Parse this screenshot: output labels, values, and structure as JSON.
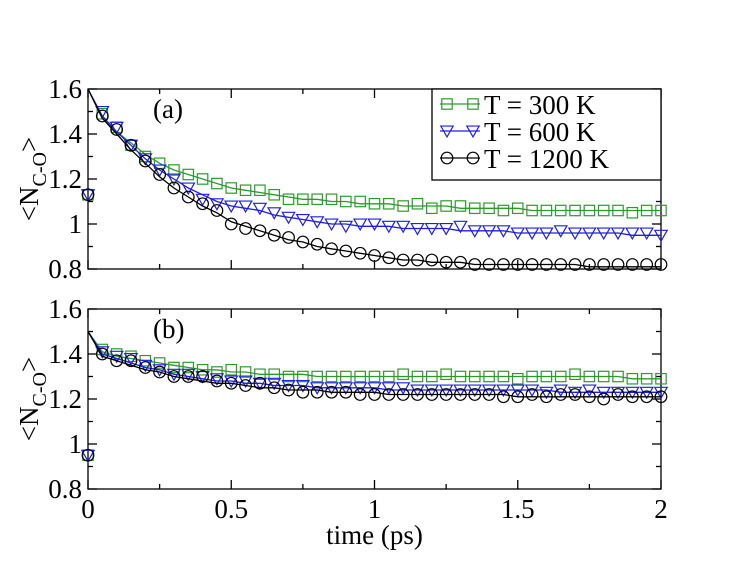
{
  "chart_data": [
    {
      "panel_label": "(a)",
      "type": "line",
      "ylabel": "<N_{C-O}>",
      "ylabel_main": "<N",
      "ylabel_sub": "C-O",
      "ylabel_end": ">",
      "xlim": [
        0,
        2
      ],
      "ylim": [
        0.8,
        1.6
      ],
      "yticks": [
        0.8,
        1.0,
        1.2,
        1.4,
        1.6
      ],
      "ytick_labels": [
        "0.8",
        "1",
        "1.2",
        "1.4",
        "1.6"
      ],
      "legend_position": "top-right",
      "series": [
        {
          "name": "T = 300 K",
          "color": "#2e9a2e",
          "marker": "square",
          "x": [
            0,
            0.05,
            0.1,
            0.15,
            0.2,
            0.25,
            0.3,
            0.35,
            0.4,
            0.45,
            0.5,
            0.55,
            0.6,
            0.65,
            0.7,
            0.75,
            0.8,
            0.85,
            0.9,
            0.95,
            1.0,
            1.05,
            1.1,
            1.15,
            1.2,
            1.25,
            1.3,
            1.35,
            1.4,
            1.45,
            1.5,
            1.55,
            1.6,
            1.65,
            1.7,
            1.75,
            1.8,
            1.85,
            1.9,
            1.95,
            2.0
          ],
          "y": [
            1.13,
            1.49,
            1.43,
            1.35,
            1.3,
            1.27,
            1.24,
            1.22,
            1.2,
            1.18,
            1.16,
            1.15,
            1.15,
            1.13,
            1.11,
            1.11,
            1.11,
            1.11,
            1.1,
            1.1,
            1.09,
            1.09,
            1.08,
            1.09,
            1.07,
            1.08,
            1.08,
            1.07,
            1.07,
            1.06,
            1.07,
            1.06,
            1.06,
            1.06,
            1.06,
            1.06,
            1.06,
            1.06,
            1.05,
            1.06,
            1.06
          ],
          "curve_y": [
            1.6,
            1.47,
            1.41,
            1.36,
            1.31,
            1.27,
            1.24,
            1.22,
            1.2,
            1.18,
            1.16,
            1.15,
            1.14,
            1.13,
            1.12,
            1.11,
            1.11,
            1.1,
            1.1,
            1.09,
            1.09,
            1.09,
            1.08,
            1.08,
            1.08,
            1.08,
            1.07,
            1.07,
            1.07,
            1.07,
            1.07,
            1.06,
            1.06,
            1.06,
            1.06,
            1.06,
            1.06,
            1.06,
            1.06,
            1.06,
            1.06
          ]
        },
        {
          "name": "T = 600 K",
          "color": "#1f1fdf",
          "marker": "triangle-down",
          "x": [
            0,
            0.05,
            0.1,
            0.15,
            0.2,
            0.25,
            0.3,
            0.35,
            0.4,
            0.45,
            0.5,
            0.55,
            0.6,
            0.65,
            0.7,
            0.75,
            0.8,
            0.85,
            0.9,
            0.95,
            1.0,
            1.05,
            1.1,
            1.15,
            1.2,
            1.25,
            1.3,
            1.35,
            1.4,
            1.45,
            1.5,
            1.55,
            1.6,
            1.65,
            1.7,
            1.75,
            1.8,
            1.85,
            1.9,
            1.95,
            2.0
          ],
          "y": [
            1.13,
            1.5,
            1.43,
            1.35,
            1.29,
            1.24,
            1.2,
            1.16,
            1.11,
            1.09,
            1.08,
            1.08,
            1.07,
            1.05,
            1.03,
            1.02,
            1.01,
            1.0,
            0.99,
            1.0,
            1.0,
            0.99,
            0.99,
            0.98,
            0.98,
            0.98,
            0.99,
            0.97,
            0.97,
            0.97,
            0.96,
            0.96,
            0.96,
            0.97,
            0.96,
            0.96,
            0.96,
            0.96,
            0.96,
            0.96,
            0.95
          ],
          "curve_y": [
            1.6,
            1.48,
            1.41,
            1.35,
            1.29,
            1.24,
            1.2,
            1.16,
            1.13,
            1.1,
            1.08,
            1.07,
            1.06,
            1.04,
            1.03,
            1.02,
            1.01,
            1.0,
            1.0,
            0.99,
            0.99,
            0.99,
            0.98,
            0.98,
            0.98,
            0.98,
            0.97,
            0.97,
            0.97,
            0.97,
            0.96,
            0.96,
            0.96,
            0.96,
            0.96,
            0.96,
            0.96,
            0.96,
            0.95,
            0.95,
            0.95
          ]
        },
        {
          "name": "T = 1200 K",
          "color": "#000000",
          "marker": "circle",
          "x": [
            0,
            0.05,
            0.1,
            0.15,
            0.2,
            0.25,
            0.3,
            0.35,
            0.4,
            0.45,
            0.5,
            0.55,
            0.6,
            0.65,
            0.7,
            0.75,
            0.8,
            0.85,
            0.9,
            0.95,
            1.0,
            1.05,
            1.1,
            1.15,
            1.2,
            1.25,
            1.3,
            1.35,
            1.4,
            1.45,
            1.5,
            1.55,
            1.6,
            1.65,
            1.7,
            1.75,
            1.8,
            1.85,
            1.9,
            1.95,
            2.0
          ],
          "y": [
            1.13,
            1.48,
            1.42,
            1.35,
            1.28,
            1.22,
            1.16,
            1.12,
            1.09,
            1.06,
            1.0,
            0.98,
            0.97,
            0.95,
            0.94,
            0.92,
            0.91,
            0.89,
            0.88,
            0.87,
            0.86,
            0.85,
            0.84,
            0.84,
            0.84,
            0.83,
            0.83,
            0.82,
            0.82,
            0.82,
            0.82,
            0.82,
            0.82,
            0.82,
            0.82,
            0.82,
            0.82,
            0.82,
            0.82,
            0.82,
            0.82
          ],
          "curve_y": [
            1.6,
            1.47,
            1.4,
            1.33,
            1.27,
            1.21,
            1.16,
            1.12,
            1.08,
            1.05,
            1.01,
            0.99,
            0.97,
            0.95,
            0.93,
            0.92,
            0.9,
            0.89,
            0.88,
            0.87,
            0.86,
            0.85,
            0.84,
            0.84,
            0.83,
            0.83,
            0.83,
            0.82,
            0.82,
            0.82,
            0.82,
            0.82,
            0.82,
            0.82,
            0.82,
            0.81,
            0.81,
            0.81,
            0.81,
            0.81,
            0.81
          ]
        }
      ]
    },
    {
      "panel_label": "(b)",
      "type": "line",
      "xlabel": "time (ps)",
      "ylabel": "<N_{C-O}>",
      "ylabel_main": "<N",
      "ylabel_sub": "C-O",
      "ylabel_end": ">",
      "xlim": [
        0,
        2
      ],
      "ylim": [
        0.8,
        1.6
      ],
      "xticks": [
        0,
        0.5,
        1,
        1.5,
        2
      ],
      "xtick_labels": [
        "0",
        "0.5",
        "1",
        "1.5",
        "2"
      ],
      "yticks": [
        0.8,
        1.0,
        1.2,
        1.4,
        1.6
      ],
      "ytick_labels": [
        "0.8",
        "1",
        "1.2",
        "1.4",
        "1.6"
      ],
      "series": [
        {
          "name": "T = 300 K",
          "color": "#2e9a2e",
          "marker": "square",
          "x": [
            0,
            0.05,
            0.1,
            0.15,
            0.2,
            0.25,
            0.3,
            0.35,
            0.4,
            0.45,
            0.5,
            0.55,
            0.6,
            0.65,
            0.7,
            0.75,
            0.8,
            0.85,
            0.9,
            0.95,
            1.0,
            1.05,
            1.1,
            1.15,
            1.2,
            1.25,
            1.3,
            1.35,
            1.4,
            1.45,
            1.5,
            1.55,
            1.6,
            1.65,
            1.7,
            1.75,
            1.8,
            1.85,
            1.9,
            1.95,
            2.0
          ],
          "y": [
            0.95,
            1.42,
            1.4,
            1.39,
            1.37,
            1.36,
            1.34,
            1.34,
            1.33,
            1.32,
            1.33,
            1.32,
            1.31,
            1.31,
            1.3,
            1.3,
            1.3,
            1.3,
            1.3,
            1.3,
            1.3,
            1.3,
            1.31,
            1.3,
            1.3,
            1.31,
            1.3,
            1.3,
            1.3,
            1.3,
            1.29,
            1.3,
            1.3,
            1.3,
            1.31,
            1.3,
            1.3,
            1.3,
            1.29,
            1.29,
            1.29
          ],
          "curve_y": [
            1.5,
            1.41,
            1.39,
            1.38,
            1.37,
            1.36,
            1.35,
            1.34,
            1.33,
            1.33,
            1.32,
            1.32,
            1.31,
            1.31,
            1.31,
            1.31,
            1.3,
            1.3,
            1.3,
            1.3,
            1.3,
            1.3,
            1.3,
            1.3,
            1.3,
            1.3,
            1.3,
            1.3,
            1.3,
            1.3,
            1.3,
            1.3,
            1.3,
            1.3,
            1.3,
            1.3,
            1.3,
            1.3,
            1.29,
            1.29,
            1.29
          ]
        },
        {
          "name": "T = 600 K",
          "color": "#1f1fdf",
          "marker": "triangle-down",
          "x": [
            0,
            0.05,
            0.1,
            0.15,
            0.2,
            0.25,
            0.3,
            0.35,
            0.4,
            0.45,
            0.5,
            0.55,
            0.6,
            0.65,
            0.7,
            0.75,
            0.8,
            0.85,
            0.9,
            0.95,
            1.0,
            1.05,
            1.1,
            1.15,
            1.2,
            1.25,
            1.3,
            1.35,
            1.4,
            1.45,
            1.5,
            1.55,
            1.6,
            1.65,
            1.7,
            1.75,
            1.8,
            1.85,
            1.9,
            1.95,
            2.0
          ],
          "y": [
            0.95,
            1.41,
            1.39,
            1.38,
            1.35,
            1.33,
            1.31,
            1.31,
            1.3,
            1.29,
            1.28,
            1.28,
            1.27,
            1.27,
            1.26,
            1.26,
            1.25,
            1.25,
            1.25,
            1.25,
            1.25,
            1.25,
            1.25,
            1.24,
            1.24,
            1.24,
            1.24,
            1.24,
            1.24,
            1.24,
            1.24,
            1.24,
            1.23,
            1.24,
            1.23,
            1.24,
            1.23,
            1.23,
            1.23,
            1.23,
            1.23
          ],
          "curve_y": [
            1.5,
            1.4,
            1.38,
            1.36,
            1.34,
            1.33,
            1.31,
            1.3,
            1.29,
            1.28,
            1.28,
            1.27,
            1.27,
            1.26,
            1.26,
            1.26,
            1.25,
            1.25,
            1.25,
            1.25,
            1.25,
            1.24,
            1.24,
            1.24,
            1.24,
            1.24,
            1.24,
            1.24,
            1.24,
            1.24,
            1.24,
            1.24,
            1.24,
            1.23,
            1.23,
            1.23,
            1.23,
            1.23,
            1.23,
            1.23,
            1.23
          ]
        },
        {
          "name": "T = 1200 K",
          "color": "#000000",
          "marker": "circle",
          "x": [
            0,
            0.05,
            0.1,
            0.15,
            0.2,
            0.25,
            0.3,
            0.35,
            0.4,
            0.45,
            0.5,
            0.55,
            0.6,
            0.65,
            0.7,
            0.75,
            0.8,
            0.85,
            0.9,
            0.95,
            1.0,
            1.05,
            1.1,
            1.15,
            1.2,
            1.25,
            1.3,
            1.35,
            1.4,
            1.45,
            1.5,
            1.55,
            1.6,
            1.65,
            1.7,
            1.75,
            1.8,
            1.85,
            1.9,
            1.95,
            2.0
          ],
          "y": [
            0.95,
            1.4,
            1.37,
            1.37,
            1.34,
            1.32,
            1.3,
            1.3,
            1.3,
            1.28,
            1.27,
            1.26,
            1.27,
            1.25,
            1.24,
            1.23,
            1.23,
            1.23,
            1.23,
            1.22,
            1.22,
            1.22,
            1.22,
            1.22,
            1.22,
            1.22,
            1.22,
            1.22,
            1.22,
            1.21,
            1.21,
            1.22,
            1.21,
            1.22,
            1.22,
            1.21,
            1.2,
            1.22,
            1.21,
            1.21,
            1.21
          ],
          "curve_y": [
            1.5,
            1.39,
            1.37,
            1.35,
            1.33,
            1.32,
            1.3,
            1.29,
            1.28,
            1.27,
            1.27,
            1.26,
            1.25,
            1.25,
            1.24,
            1.24,
            1.24,
            1.23,
            1.23,
            1.23,
            1.23,
            1.22,
            1.22,
            1.22,
            1.22,
            1.22,
            1.22,
            1.22,
            1.22,
            1.22,
            1.21,
            1.21,
            1.21,
            1.21,
            1.21,
            1.21,
            1.21,
            1.21,
            1.21,
            1.21,
            1.21
          ]
        }
      ]
    }
  ]
}
